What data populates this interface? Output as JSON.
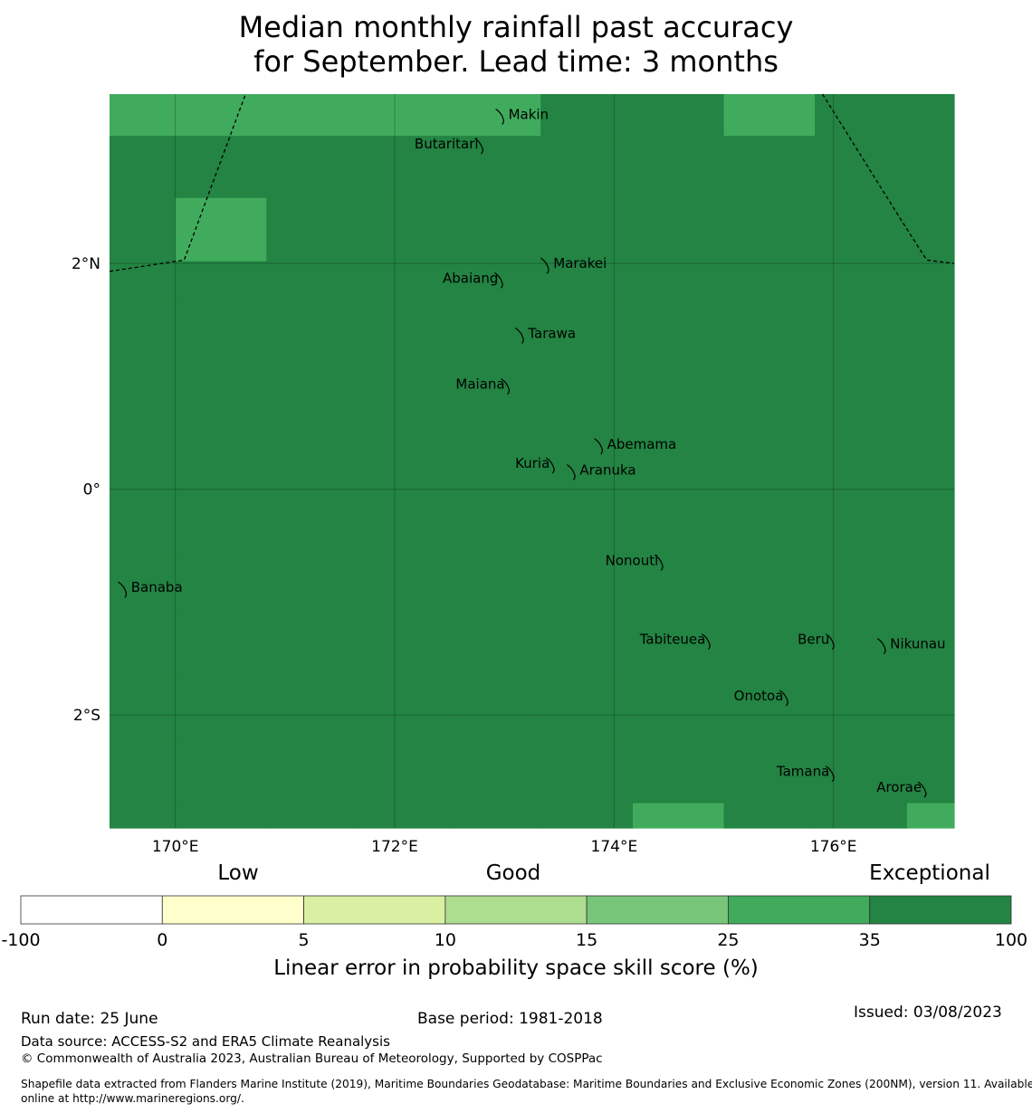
{
  "title": {
    "line1": "Median monthly rainfall past accuracy",
    "line2": "for September. Lead time: 3 months"
  },
  "map": {
    "lon_range": [
      169.4,
      177.1
    ],
    "lat_range": [
      -3.0,
      3.5
    ],
    "lon_ticks": [
      {
        "value": 170,
        "label": "170°E"
      },
      {
        "value": 172,
        "label": "172°E"
      },
      {
        "value": 174,
        "label": "174°E"
      },
      {
        "value": 176,
        "label": "176°E"
      }
    ],
    "lat_ticks": [
      {
        "value": 2,
        "label": "2°N"
      },
      {
        "value": 0,
        "label": "0°"
      },
      {
        "value": -2,
        "label": "2°S"
      }
    ],
    "grid_lon_edges": [
      169.4,
      170.0,
      170.83,
      171.67,
      172.5,
      173.33,
      174.17,
      175.0,
      175.83,
      176.67,
      177.1
    ],
    "grid_lat_edges": [
      3.5,
      3.13,
      2.58,
      2.02,
      1.67,
      0.0,
      -0.57,
      -1.12,
      -1.67,
      -2.23,
      -2.78,
      -3.0
    ],
    "skill_classes": [
      [
        25,
        25,
        25,
        25,
        25,
        35,
        35,
        25,
        35,
        35
      ],
      [
        35,
        100,
        35,
        100,
        100,
        100,
        100,
        100,
        35,
        35
      ],
      [
        100,
        25,
        100,
        100,
        100,
        100,
        35,
        100,
        100,
        35
      ],
      [
        35,
        100,
        100,
        100,
        100,
        100,
        35,
        100,
        100,
        100
      ],
      [
        100,
        100,
        100,
        100,
        100,
        100,
        100,
        100,
        100,
        100
      ],
      [
        100,
        100,
        100,
        100,
        100,
        100,
        100,
        100,
        100,
        100
      ],
      [
        100,
        100,
        100,
        100,
        100,
        35,
        100,
        100,
        35,
        35
      ],
      [
        35,
        100,
        35,
        100,
        100,
        35,
        35,
        35,
        35,
        35
      ],
      [
        35,
        35,
        35,
        35,
        35,
        35,
        35,
        35,
        35,
        35
      ],
      [
        35,
        35,
        35,
        35,
        100,
        35,
        35,
        35,
        35,
        35
      ],
      [
        35,
        35,
        35,
        35,
        35,
        35,
        25,
        35,
        35,
        25
      ]
    ],
    "islands": [
      {
        "name": "Makin",
        "lon": 172.97,
        "lat": 3.32
      },
      {
        "name": "Butaritari",
        "lon": 172.78,
        "lat": 3.06
      },
      {
        "name": "Marakei",
        "lon": 173.38,
        "lat": 2.0
      },
      {
        "name": "Abaiang",
        "lon": 172.96,
        "lat": 1.87
      },
      {
        "name": "Tarawa",
        "lon": 173.15,
        "lat": 1.38
      },
      {
        "name": "Maiana",
        "lon": 173.02,
        "lat": 0.93
      },
      {
        "name": "Abemama",
        "lon": 173.87,
        "lat": 0.4
      },
      {
        "name": "Kuria",
        "lon": 173.43,
        "lat": 0.23
      },
      {
        "name": "Aranuka",
        "lon": 173.62,
        "lat": 0.17
      },
      {
        "name": "Nonouti",
        "lon": 174.42,
        "lat": -0.63
      },
      {
        "name": "Banaba",
        "lon": 169.53,
        "lat": -0.87
      },
      {
        "name": "Tabiteuea",
        "lon": 174.85,
        "lat": -1.33
      },
      {
        "name": "Beru",
        "lon": 175.98,
        "lat": -1.33
      },
      {
        "name": "Nikunau",
        "lon": 176.45,
        "lat": -1.37
      },
      {
        "name": "Onotoa",
        "lon": 175.56,
        "lat": -1.83
      },
      {
        "name": "Tamana",
        "lon": 175.98,
        "lat": -2.5
      },
      {
        "name": "Arorae",
        "lon": 176.82,
        "lat": -2.64
      }
    ],
    "boundaries": [
      [
        [
          169.4,
          1.93
        ],
        [
          170.08,
          2.03
        ],
        [
          170.64,
          3.5
        ]
      ],
      [
        [
          175.9,
          3.5
        ],
        [
          176.62,
          2.38
        ],
        [
          176.85,
          2.03
        ],
        [
          177.1,
          2.0
        ]
      ]
    ]
  },
  "colorbar": {
    "category_labels": {
      "low": "Low",
      "good": "Good",
      "exceptional": "Exceptional"
    },
    "boundaries": [
      "-100",
      "0",
      "5",
      "10",
      "15",
      "25",
      "35",
      "100"
    ],
    "colors": [
      "#ffffff",
      "#ffffcc",
      "#d9f0a3",
      "#addd8e",
      "#78c679",
      "#41ab5d",
      "#238443"
    ],
    "label": "Linear error in probability space skill score (%)"
  },
  "footer": {
    "run_date": "Run date: 25 June",
    "base_period": "Base period: 1981-2018",
    "issued": "Issued: 03/08/2023",
    "data_source": "Data source: ACCESS-S2 and ERA5 Climate Reanalysis",
    "copyright": "© Commonwealth of Australia 2023, Australian Bureau of Meteorology, Supported by COSPPac",
    "shapefile_line1": "Shapefile data extracted from Flanders Marine Institute (2019), Maritime Boundaries Geodatabase: Maritime Boundaries and Exclusive Economic Zones (200NM), version 11. Available",
    "shapefile_line2": "online at http://www.marineregions.org/."
  }
}
